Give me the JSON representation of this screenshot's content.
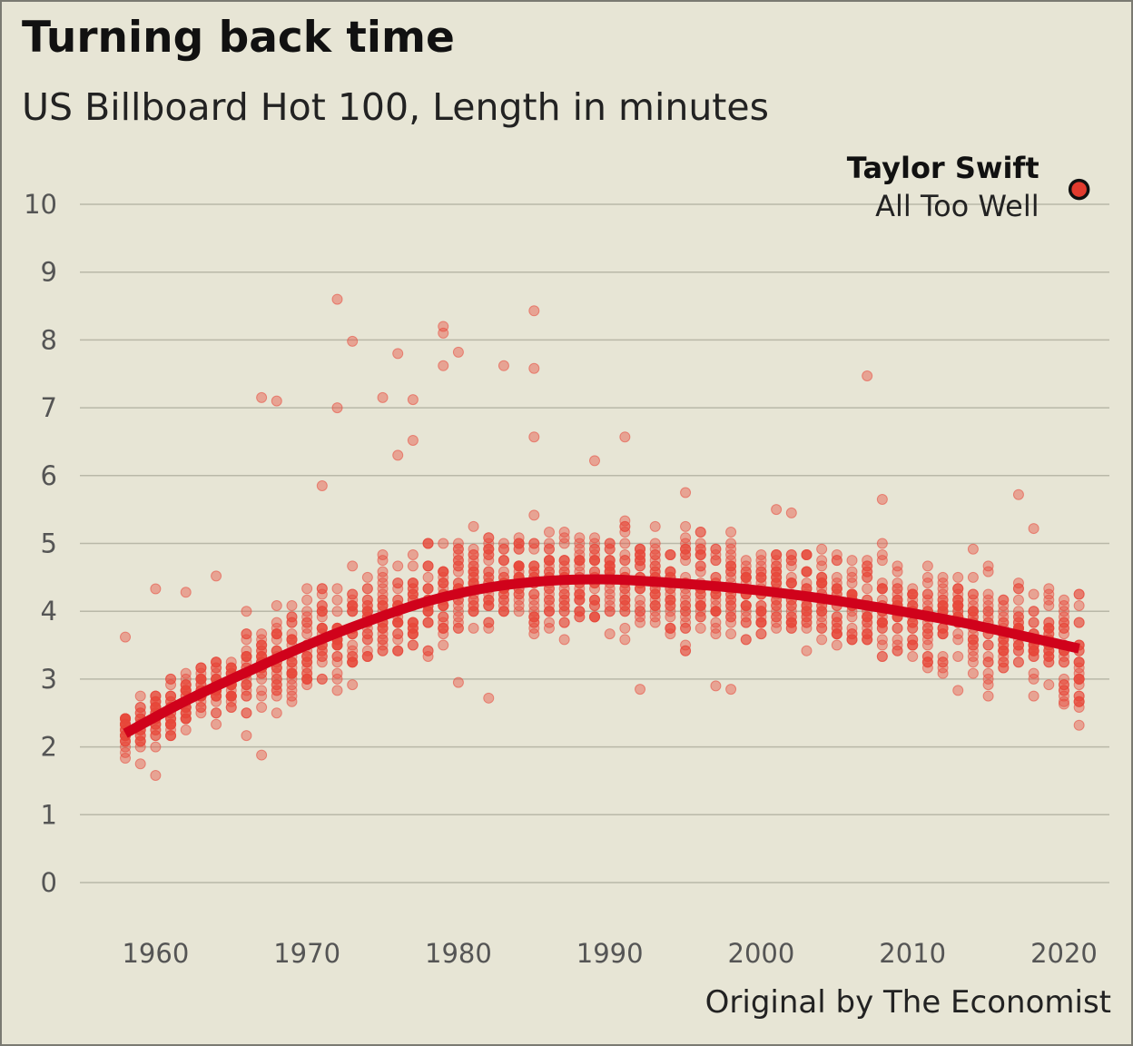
{
  "title": "Turning back time",
  "subtitle": "US Billboard Hot 100, Length in minutes",
  "source": "Original by The Economist",
  "colors": {
    "background": "#e7e5d5",
    "points": "#e8473a",
    "trend": "#d0021b",
    "grid": "#b9b8a8",
    "highlight": "#e23b2e"
  },
  "chart_data": {
    "type": "scatter",
    "title": "Turning back time",
    "subtitle": "US Billboard Hot 100, Length in minutes",
    "xlabel": "",
    "ylabel": "",
    "xlim": [
      1955,
      2023
    ],
    "ylim": [
      0,
      10
    ],
    "x_ticks": [
      1960,
      1970,
      1980,
      1990,
      2000,
      2010,
      2020
    ],
    "y_ticks": [
      0,
      1,
      2,
      3,
      4,
      5,
      6,
      7,
      8,
      9,
      10
    ],
    "grid": true,
    "trend": {
      "x": [
        1958,
        1962,
        1966,
        1970,
        1974,
        1978,
        1982,
        1986,
        1990,
        1994,
        1998,
        2002,
        2006,
        2010,
        2014,
        2018,
        2021
      ],
      "y": [
        2.2,
        2.68,
        3.1,
        3.5,
        3.85,
        4.15,
        4.35,
        4.45,
        4.47,
        4.42,
        4.35,
        4.25,
        4.12,
        3.97,
        3.8,
        3.6,
        3.45
      ]
    },
    "outliers": {
      "x": [
        1958,
        1960,
        1960,
        1962,
        1964,
        1967,
        1967,
        1968,
        1971,
        1972,
        1972,
        1973,
        1975,
        1976,
        1976,
        1977,
        1977,
        1979,
        1979,
        1979,
        1980,
        1980,
        1982,
        1983,
        1985,
        1985,
        1985,
        1989,
        1991,
        1992,
        1995,
        1997,
        1998,
        2001,
        2002,
        2007,
        2008,
        2017,
        2018,
        2020,
        2021
      ],
      "y": [
        3.62,
        1.58,
        4.33,
        4.28,
        4.52,
        7.15,
        1.88,
        7.1,
        5.85,
        8.6,
        7.0,
        7.98,
        7.15,
        7.8,
        6.3,
        6.52,
        7.12,
        8.2,
        8.1,
        7.62,
        2.95,
        7.82,
        2.72,
        7.62,
        8.43,
        7.58,
        6.57,
        6.22,
        6.57,
        2.85,
        5.75,
        2.9,
        2.85,
        5.5,
        5.45,
        7.47,
        5.65,
        5.72,
        5.22,
        2.63,
        2.32
      ]
    },
    "highlight": {
      "x": 2021,
      "y": 10.22,
      "name": "Taylor Swift",
      "song": "All Too Well"
    }
  }
}
